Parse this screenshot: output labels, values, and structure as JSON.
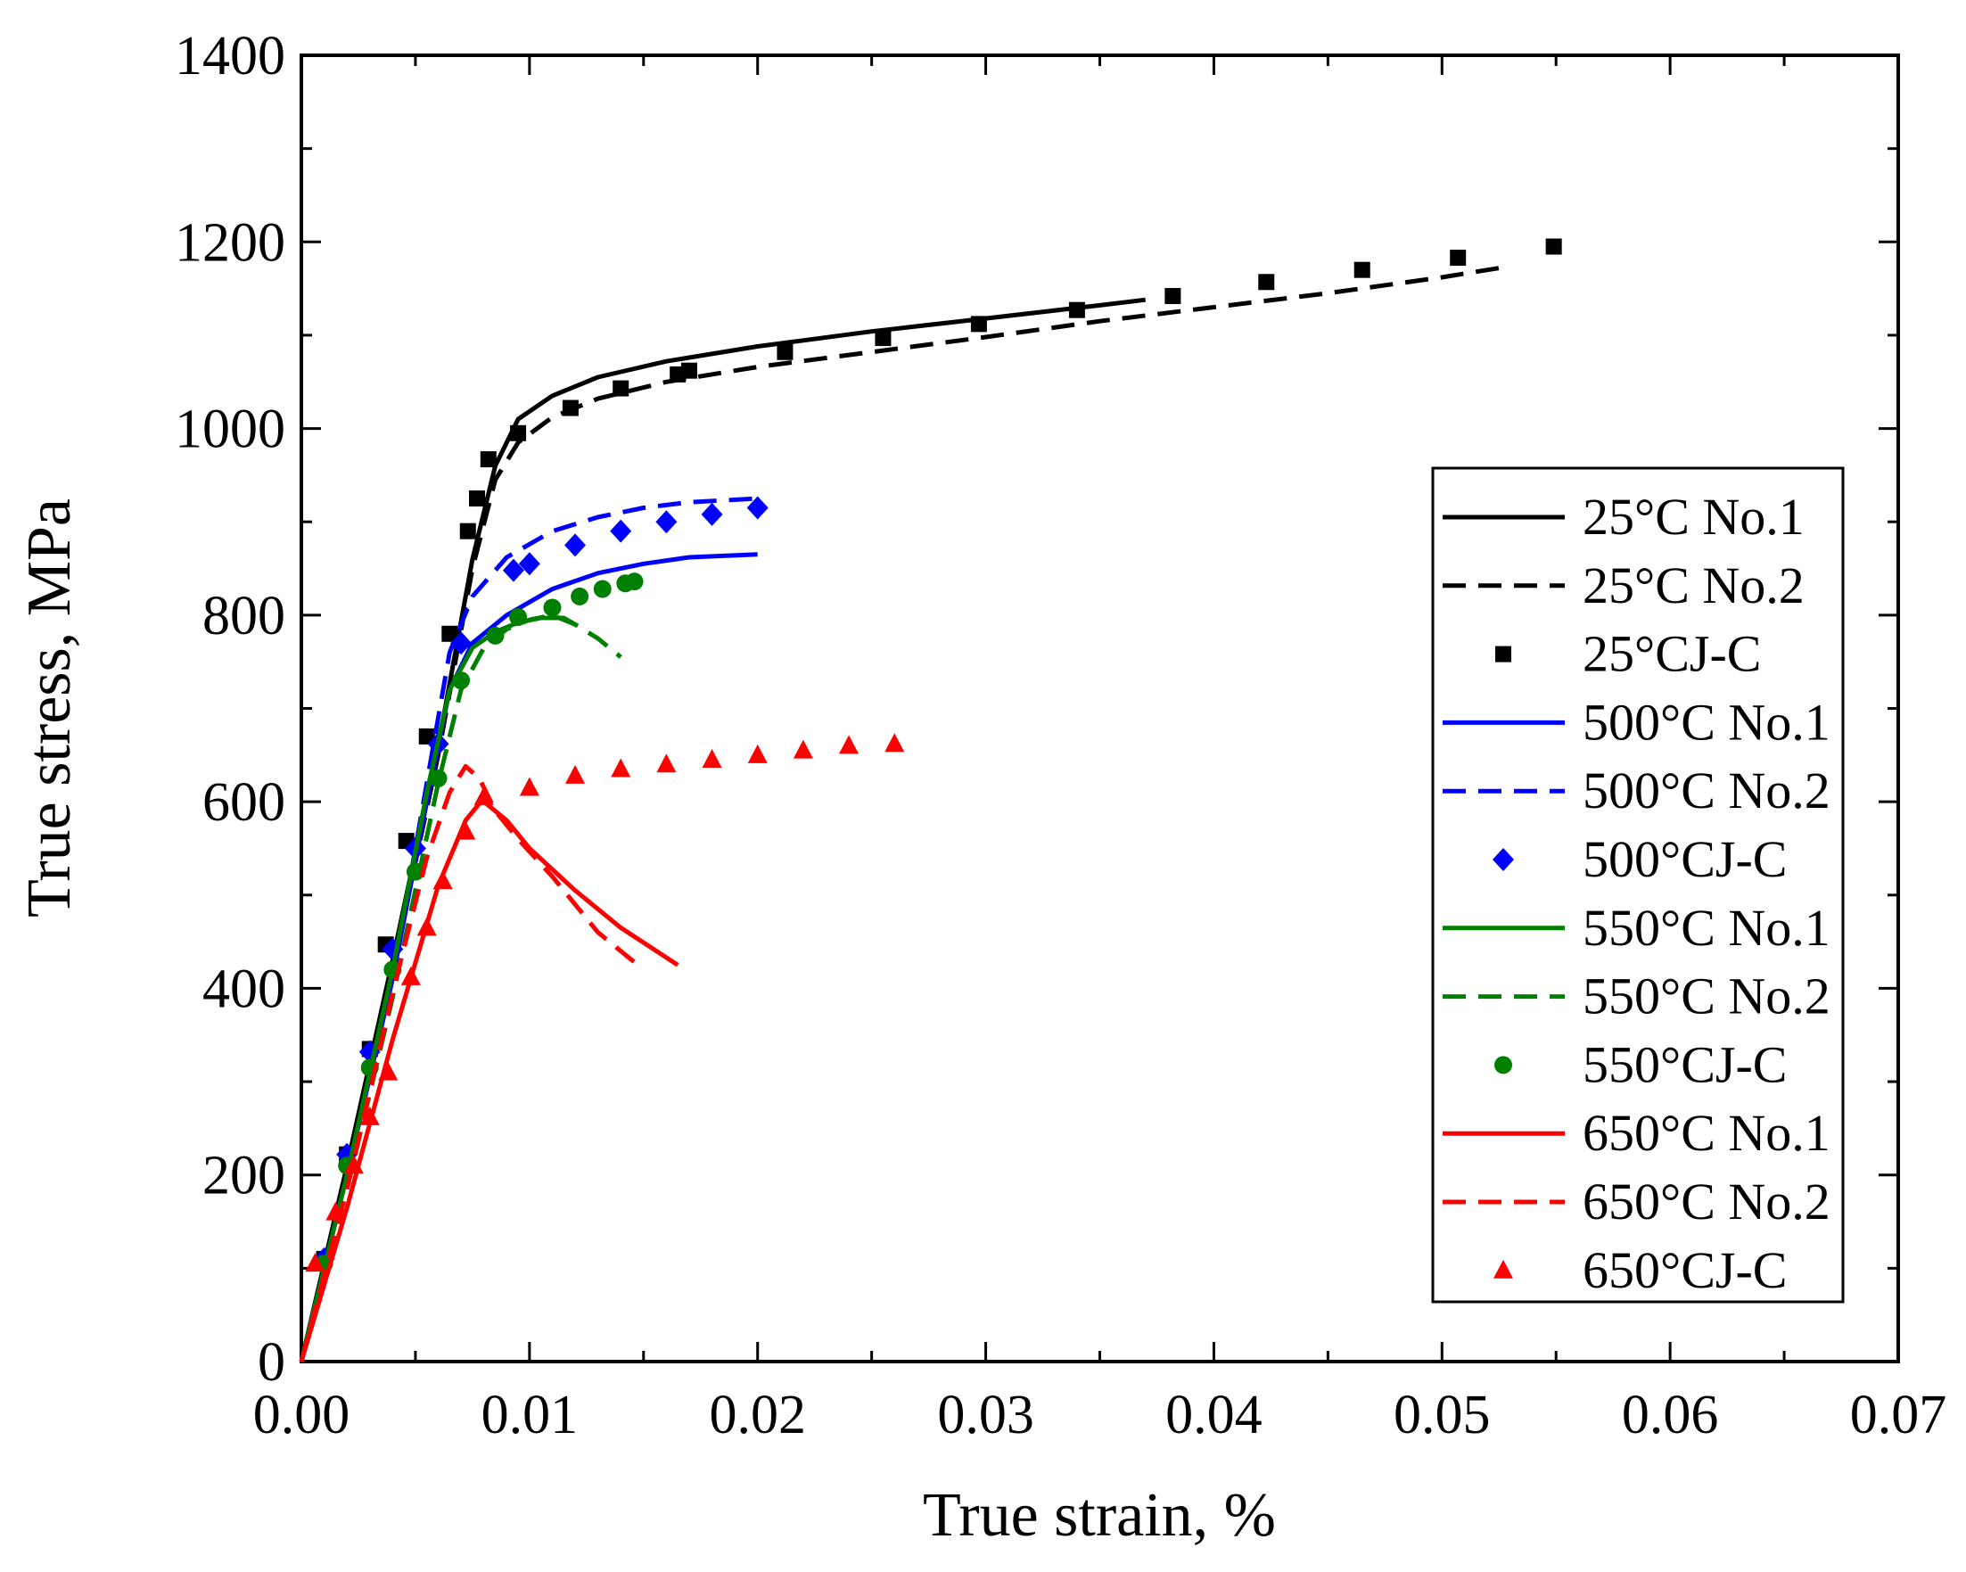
{
  "chart_data": {
    "type": "line",
    "title": "",
    "xlabel": "True strain, %",
    "ylabel": "True stress, MPa",
    "xlim": [
      0,
      0.07
    ],
    "ylim": [
      0,
      1400
    ],
    "x_ticks": [
      {
        "value": 0.0,
        "label": "0.00"
      },
      {
        "value": 0.01,
        "label": "0.01"
      },
      {
        "value": 0.02,
        "label": "0.02"
      },
      {
        "value": 0.03,
        "label": "0.03"
      },
      {
        "value": 0.04,
        "label": "0.04"
      },
      {
        "value": 0.05,
        "label": "0.05"
      },
      {
        "value": 0.06,
        "label": "0.06"
      },
      {
        "value": 0.07,
        "label": "0.07"
      }
    ],
    "y_ticks": [
      {
        "value": 0,
        "label": "0"
      },
      {
        "value": 200,
        "label": "200"
      },
      {
        "value": 400,
        "label": "400"
      },
      {
        "value": 600,
        "label": "600"
      },
      {
        "value": 800,
        "label": "800"
      },
      {
        "value": 1000,
        "label": "1000"
      },
      {
        "value": 1200,
        "label": "1200"
      },
      {
        "value": 1400,
        "label": "1400"
      }
    ],
    "grid": false,
    "legend_position": "right",
    "series": [
      {
        "name": "25°C No.1",
        "color": "#000000",
        "style": "solid",
        "marker": "none",
        "x": [
          0,
          0.002,
          0.004,
          0.006,
          0.0075,
          0.0085,
          0.0095,
          0.011,
          0.013,
          0.016,
          0.02,
          0.025,
          0.03,
          0.035,
          0.037
        ],
        "y": [
          0,
          210,
          430,
          660,
          860,
          960,
          1010,
          1035,
          1055,
          1072,
          1088,
          1104,
          1118,
          1132,
          1138
        ]
      },
      {
        "name": "25°C No.2",
        "color": "#000000",
        "style": "dashed",
        "marker": "none",
        "x": [
          0,
          0.002,
          0.004,
          0.006,
          0.0075,
          0.0085,
          0.0095,
          0.011,
          0.013,
          0.016,
          0.02,
          0.025,
          0.03,
          0.035,
          0.04,
          0.045,
          0.05,
          0.0525
        ],
        "y": [
          0,
          205,
          420,
          650,
          850,
          945,
          985,
          1012,
          1032,
          1050,
          1066,
          1082,
          1098,
          1115,
          1130,
          1145,
          1162,
          1172
        ]
      },
      {
        "name": "25°CJ-C",
        "color": "#000000",
        "style": "none",
        "marker": "square",
        "x": [
          0.001,
          0.002,
          0.003,
          0.0037,
          0.0046,
          0.0055,
          0.0065,
          0.0073,
          0.0077,
          0.0082,
          0.0095,
          0.0118,
          0.014,
          0.0165,
          0.017,
          0.0212,
          0.0255,
          0.0297,
          0.034,
          0.0382,
          0.0423,
          0.0465,
          0.0507,
          0.0549
        ],
        "y": [
          110,
          222,
          335,
          447,
          558,
          670,
          780,
          890,
          925,
          967,
          995,
          1022,
          1043,
          1058,
          1062,
          1082,
          1097,
          1112,
          1127,
          1142,
          1157,
          1170,
          1183,
          1195
        ]
      },
      {
        "name": "500°C No.1",
        "color": "#0000ff",
        "style": "solid",
        "marker": "none",
        "x": [
          0,
          0.002,
          0.004,
          0.0055,
          0.0065,
          0.0075,
          0.009,
          0.011,
          0.013,
          0.015,
          0.017,
          0.02
        ],
        "y": [
          0,
          200,
          410,
          600,
          720,
          770,
          800,
          828,
          845,
          855,
          862,
          865
        ]
      },
      {
        "name": "500°C No.2",
        "color": "#0000ff",
        "style": "dashed",
        "marker": "none",
        "x": [
          0,
          0.002,
          0.004,
          0.0055,
          0.0065,
          0.0075,
          0.009,
          0.011,
          0.013,
          0.015,
          0.017,
          0.02
        ],
        "y": [
          0,
          200,
          410,
          620,
          760,
          820,
          862,
          890,
          905,
          915,
          921,
          925
        ]
      },
      {
        "name": "500°CJ-C",
        "color": "#0000ff",
        "style": "none",
        "marker": "diamond",
        "x": [
          0.001,
          0.002,
          0.003,
          0.004,
          0.005,
          0.006,
          0.007,
          0.0093,
          0.01,
          0.012,
          0.014,
          0.016,
          0.018,
          0.02
        ],
        "y": [
          110,
          222,
          332,
          442,
          550,
          662,
          770,
          848,
          855,
          875,
          890,
          900,
          908,
          915
        ]
      },
      {
        "name": "550°C No.1",
        "color": "#008000",
        "style": "solid",
        "marker": "none",
        "x": [
          0,
          0.002,
          0.004,
          0.0055,
          0.0065,
          0.0075,
          0.0085,
          0.0095,
          0.0105,
          0.0115,
          0.012
        ],
        "y": [
          0,
          200,
          420,
          610,
          720,
          765,
          782,
          792,
          797,
          797,
          790
        ]
      },
      {
        "name": "550°C No.2",
        "color": "#008000",
        "style": "dashed",
        "marker": "none",
        "x": [
          0,
          0.002,
          0.004,
          0.006,
          0.007,
          0.008,
          0.009,
          0.01,
          0.011,
          0.012,
          0.013,
          0.014
        ],
        "y": [
          0,
          185,
          390,
          620,
          720,
          765,
          785,
          795,
          800,
          790,
          775,
          755
        ]
      },
      {
        "name": "550°CJ-C",
        "color": "#008000",
        "style": "none",
        "marker": "circle",
        "x": [
          0.001,
          0.002,
          0.003,
          0.004,
          0.005,
          0.006,
          0.007,
          0.0085,
          0.0095,
          0.011,
          0.0122,
          0.0132,
          0.0142,
          0.0146
        ],
        "y": [
          105,
          210,
          315,
          420,
          525,
          625,
          730,
          778,
          798,
          808,
          820,
          828,
          834,
          836
        ]
      },
      {
        "name": "650°C No.1",
        "color": "#ff0000",
        "style": "solid",
        "marker": "none",
        "x": [
          0,
          0.002,
          0.004,
          0.006,
          0.0072,
          0.0078,
          0.008,
          0.009,
          0.01,
          0.012,
          0.014,
          0.0165
        ],
        "y": [
          0,
          165,
          345,
          510,
          580,
          598,
          600,
          580,
          550,
          505,
          465,
          425
        ]
      },
      {
        "name": "650°C No.2",
        "color": "#ff0000",
        "style": "dashed",
        "marker": "none",
        "x": [
          0,
          0.002,
          0.004,
          0.0055,
          0.0065,
          0.0072,
          0.0078,
          0.0085,
          0.0095,
          0.011,
          0.013,
          0.015
        ],
        "y": [
          0,
          185,
          395,
          540,
          610,
          638,
          625,
          590,
          560,
          520,
          460,
          420
        ]
      },
      {
        "name": "650°CJ-C",
        "color": "#ff0000",
        "style": "none",
        "marker": "triangle",
        "x": [
          0.0006,
          0.0015,
          0.0023,
          0.003,
          0.0038,
          0.0048,
          0.0055,
          0.0062,
          0.0072,
          0.008,
          0.01,
          0.012,
          0.014,
          0.016,
          0.018,
          0.02,
          0.022,
          0.024,
          0.026
        ],
        "y": [
          105,
          160,
          210,
          262,
          310,
          412,
          465,
          515,
          568,
          605,
          615,
          628,
          635,
          640,
          645,
          650,
          655,
          660,
          662
        ]
      }
    ]
  }
}
